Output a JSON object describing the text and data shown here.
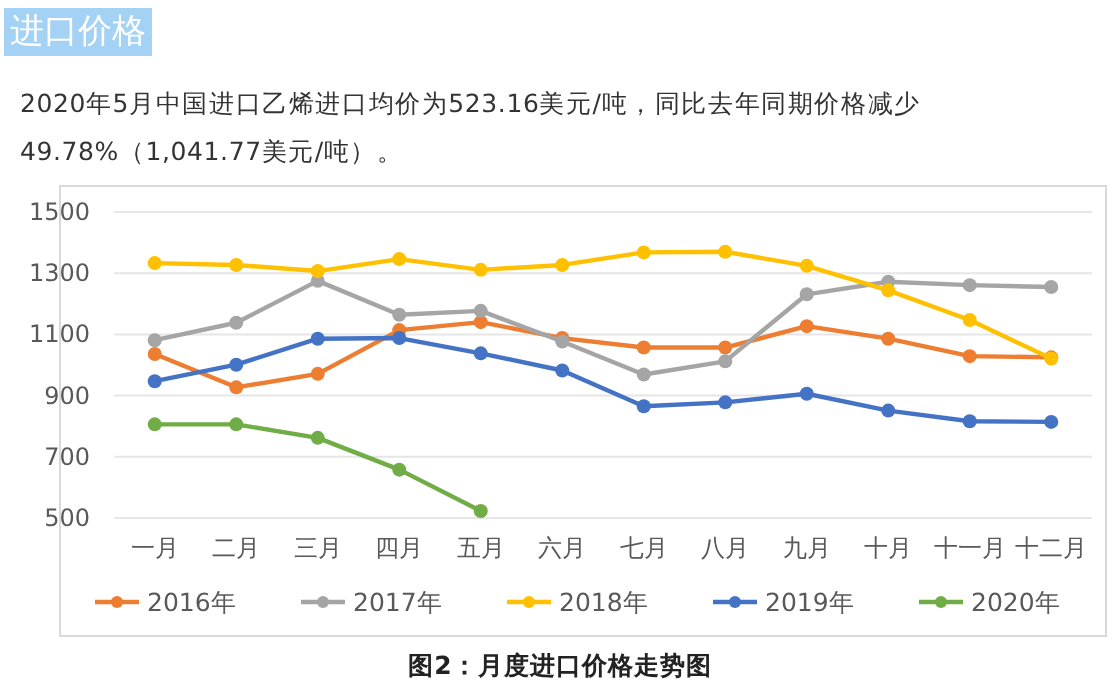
{
  "chart_data": {
    "type": "line",
    "title": "进口价格",
    "subtitle": "2020年5月中国进口乙烯进口均价为523.16美元/吨，同比去年同期价格减少49.78%（1,041.77美元/吨）。",
    "annotations": [
      "图2：月度进口价格走势图"
    ],
    "categories": [
      "一月",
      "二月",
      "三月",
      "四月",
      "五月",
      "六月",
      "七月",
      "八月",
      "九月",
      "十月",
      "十一月",
      "十二月"
    ],
    "series": [
      {
        "name": "2016年",
        "color": "#ed7d31",
        "values": [
          1036,
          927,
          971,
          1114,
          1140,
          1088,
          1057,
          1057,
          1127,
          1086,
          1029,
          1025
        ]
      },
      {
        "name": "2017年",
        "color": "#a5a5a5",
        "values": [
          1081,
          1138,
          1275,
          1164,
          1177,
          1077,
          969,
          1012,
          1231,
          1272,
          1261,
          1255
        ]
      },
      {
        "name": "2018年",
        "color": "#ffc000",
        "values": [
          1333,
          1327,
          1307,
          1346,
          1311,
          1327,
          1368,
          1370,
          1324,
          1244,
          1147,
          1021
        ]
      },
      {
        "name": "2019年",
        "color": "#4472c4",
        "values": [
          947,
          1001,
          1086,
          1088,
          1038,
          982,
          865,
          878,
          906,
          851,
          816,
          814
        ]
      },
      {
        "name": "2020年",
        "color": "#70ad47",
        "values": [
          806,
          806,
          762,
          658,
          523,
          null,
          null,
          null,
          null,
          null,
          null,
          null
        ]
      }
    ],
    "ylim": [
      500,
      1500
    ],
    "yticks": [
      500,
      700,
      900,
      1100,
      1300,
      1500
    ],
    "grid": "y",
    "legend": "bottom",
    "marker": "circle",
    "line_style": "solid"
  }
}
